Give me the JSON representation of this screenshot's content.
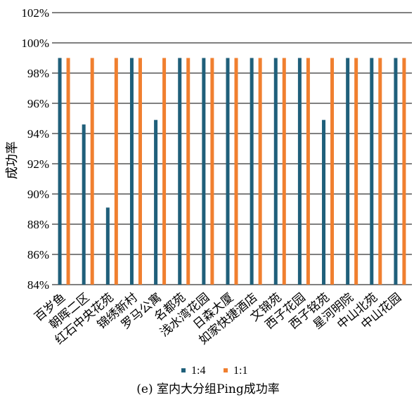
{
  "chart_data": {
    "type": "bar",
    "title": "(e) 室内大分组Ping成功率",
    "xlabel": "",
    "ylabel": "成功率",
    "ylim": [
      84,
      102
    ],
    "yticks": [
      "84%",
      "86%",
      "88%",
      "90%",
      "92%",
      "94%",
      "96%",
      "98%",
      "100%",
      "102%"
    ],
    "grid": true,
    "legend_position": "bottom",
    "categories": [
      "百岁鱼",
      "朝晖二区",
      "红石中央花苑",
      "锦绣新村",
      "罗马公寓",
      "名都苑",
      "浅水湾花园",
      "日森大厦",
      "如家快捷酒店",
      "文锦苑",
      "西子花园",
      "西子铭苑",
      "星河明院",
      "中山北苑",
      "中山花园"
    ],
    "series": [
      {
        "name": "1:4",
        "color": "#1f5f7a",
        "values": [
          99,
          94.6,
          89.1,
          99,
          94.9,
          99,
          99,
          99,
          99,
          99,
          99,
          94.9,
          99,
          99,
          99
        ]
      },
      {
        "name": "1:1",
        "color": "#f07f2f",
        "values": [
          99,
          99,
          99,
          99,
          99,
          99,
          99,
          99,
          99,
          99,
          99,
          99,
          99,
          99,
          99
        ]
      }
    ]
  }
}
